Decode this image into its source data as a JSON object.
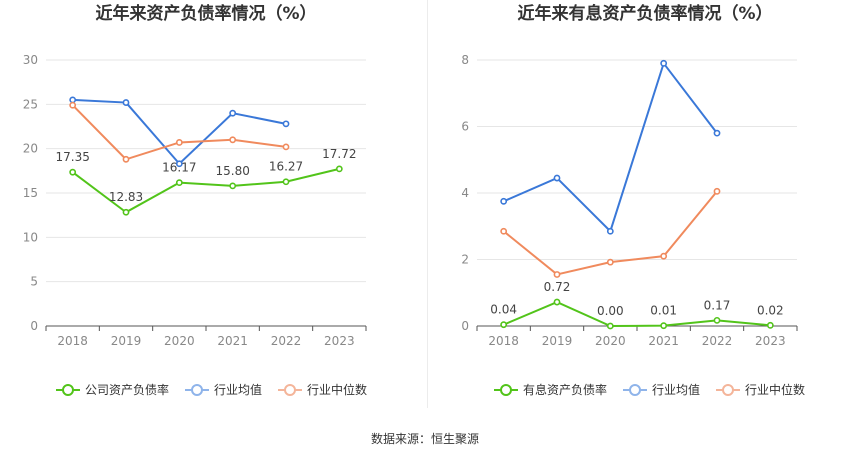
{
  "colors": {
    "company": "#52c41a",
    "industry_avg": "#3a78d8",
    "industry_median": "#f08a5d",
    "legend_avg": "#8fb4ea",
    "legend_median": "#f4b59a",
    "grid": "#e6e6e6",
    "axis_text": "#888888"
  },
  "source_text": "数据来源：恒生聚源",
  "chart_data": [
    {
      "type": "line",
      "title": "近年来资产负债率情况（%）",
      "categories": [
        "2018",
        "2019",
        "2020",
        "2021",
        "2022",
        "2023"
      ],
      "ylim": [
        0,
        30
      ],
      "yticks": [
        "0",
        "5",
        "10",
        "15",
        "20",
        "25",
        "30"
      ],
      "grid": true,
      "legend_position": "bottom",
      "series": [
        {
          "name": "公司资产负债率",
          "values": [
            17.35,
            12.83,
            16.17,
            15.8,
            16.27,
            17.72
          ],
          "labels": [
            "17.35",
            "12.83",
            "16.17",
            "15.80",
            "16.27",
            "17.72"
          ]
        },
        {
          "name": "行业均值",
          "values": [
            25.5,
            25.2,
            18.3,
            24.0,
            22.8,
            null
          ]
        },
        {
          "name": "行业中位数",
          "values": [
            24.9,
            18.8,
            20.7,
            21.0,
            20.2,
            null
          ]
        }
      ]
    },
    {
      "type": "line",
      "title": "近年来有息资产负债率情况（%）",
      "categories": [
        "2018",
        "2019",
        "2020",
        "2021",
        "2022",
        "2023"
      ],
      "ylim": [
        0,
        8
      ],
      "yticks": [
        "0",
        "2",
        "4",
        "6",
        "8"
      ],
      "grid": true,
      "legend_position": "bottom",
      "series": [
        {
          "name": "有息资产负债率",
          "values": [
            0.04,
            0.72,
            0.0,
            0.01,
            0.17,
            0.02
          ],
          "labels": [
            "0.04",
            "0.72",
            "0.00",
            "0.01",
            "0.17",
            "0.02"
          ]
        },
        {
          "name": "行业均值",
          "values": [
            3.75,
            4.45,
            2.85,
            7.9,
            5.8,
            null
          ]
        },
        {
          "name": "行业中位数",
          "values": [
            2.85,
            1.55,
            1.92,
            2.1,
            4.05,
            null
          ]
        }
      ]
    }
  ]
}
